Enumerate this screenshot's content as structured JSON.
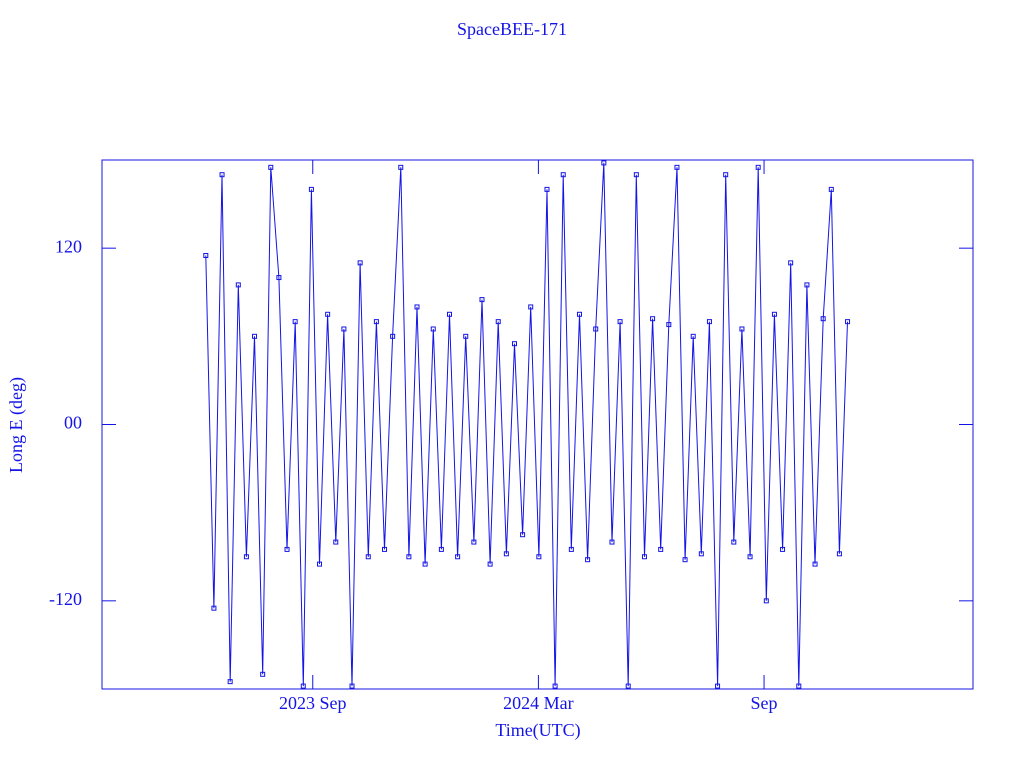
{
  "chart_data": {
    "type": "line",
    "title": "SpaceBEE-171",
    "xlabel": "Time(UTC)",
    "ylabel": "Long E (deg)",
    "color": "#1414e6",
    "xlim": [
      2023.2,
      2025.13
    ],
    "xticks": [
      {
        "value": 2023.667,
        "label": "2023 Sep"
      },
      {
        "value": 2024.167,
        "label": "2024 Mar"
      },
      {
        "value": 2024.667,
        "label": "Sep"
      }
    ],
    "ylim": [
      -180,
      180
    ],
    "yticks": [
      -120,
      {
        "value": 0,
        "label": "00"
      },
      120
    ],
    "x": [
      2023.43,
      2023.448,
      2023.466,
      2023.484,
      2023.502,
      2023.52,
      2023.538,
      2023.556,
      2023.574,
      2023.592,
      2023.61,
      2023.628,
      2023.646,
      2023.664,
      2023.682,
      2023.7,
      2023.718,
      2023.736,
      2023.754,
      2023.772,
      2023.79,
      2023.808,
      2023.826,
      2023.844,
      2023.862,
      2023.88,
      2023.898,
      2023.916,
      2023.934,
      2023.952,
      2023.97,
      2023.988,
      2024.006,
      2024.024,
      2024.042,
      2024.06,
      2024.078,
      2024.096,
      2024.114,
      2024.132,
      2024.15,
      2024.168,
      2024.186,
      2024.204,
      2024.222,
      2024.24,
      2024.258,
      2024.276,
      2024.294,
      2024.312,
      2024.33,
      2024.348,
      2024.366,
      2024.384,
      2024.402,
      2024.42,
      2024.438,
      2024.456,
      2024.474,
      2024.492,
      2024.51,
      2024.528,
      2024.546,
      2024.564,
      2024.582,
      2024.6,
      2024.618,
      2024.636,
      2024.654,
      2024.672,
      2024.69,
      2024.708,
      2024.726,
      2024.744,
      2024.762,
      2024.78,
      2024.798,
      2024.816,
      2024.834,
      2024.852
    ],
    "values": [
      115,
      -125,
      170,
      -175,
      95,
      -90,
      60,
      -170,
      175,
      100,
      -85,
      70,
      -178,
      160,
      -95,
      75,
      -80,
      65,
      -178,
      110,
      -90,
      70,
      -85,
      60,
      175,
      -90,
      80,
      -95,
      65,
      -85,
      75,
      -90,
      60,
      -80,
      85,
      -95,
      70,
      -88,
      55,
      -75,
      80,
      -90,
      160,
      -178,
      170,
      -85,
      75,
      -92,
      65,
      178,
      -80,
      70,
      -178,
      170,
      -90,
      72,
      -85,
      68,
      175,
      -92,
      60,
      -88,
      70,
      -178,
      170,
      -80,
      65,
      -90,
      175,
      -120,
      75,
      -85,
      110,
      -178,
      95,
      -95,
      72,
      160,
      -88,
      70
    ]
  }
}
